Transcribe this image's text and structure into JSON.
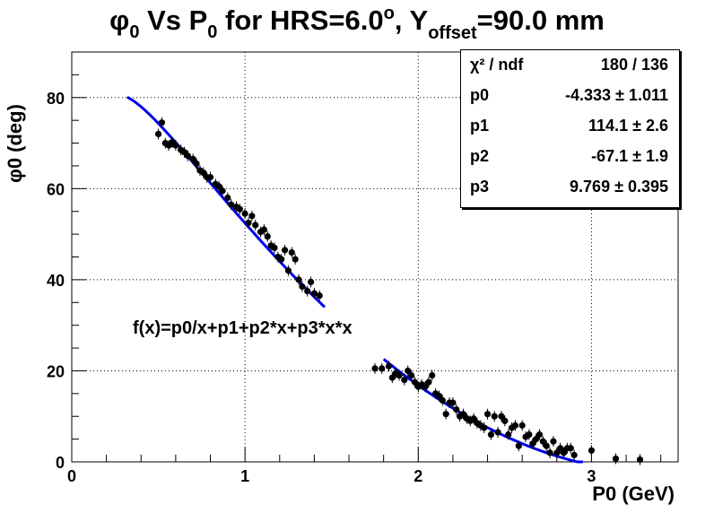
{
  "title": {
    "phi": "φ",
    "phi_sub": "0",
    "part1": " Vs P",
    "p_sub": "0",
    "part2": " for HRS=6.0",
    "deg": "o",
    "part3": ", Y",
    "y_sub": "offset",
    "part4": "=90.0 mm"
  },
  "stats_box": {
    "rows": [
      {
        "label": "χ² / ndf",
        "value": "180 / 136"
      },
      {
        "label": "p0",
        "value": "-4.333 ± 1.011"
      },
      {
        "label": "p1",
        "value": "114.1 ± 2.6"
      },
      {
        "label": "p2",
        "value": "-67.1 ± 1.9"
      },
      {
        "label": "p3",
        "value": "9.769 ± 0.395"
      }
    ]
  },
  "fit_label": "f(x)=p0/x+p1+p2*x+p3*x*x",
  "colors": {
    "fit": "#0000ee",
    "points": "#000000",
    "grid": "#000000"
  },
  "chart_data": {
    "type": "scatter",
    "xlabel": "P0 (GeV)",
    "ylabel": "φ0 (deg)",
    "xlim": [
      0,
      3.5
    ],
    "ylim": [
      0,
      90
    ],
    "xticks": [
      "0",
      "1",
      "2",
      "3"
    ],
    "yticks": [
      "0",
      "20",
      "40",
      "60",
      "80"
    ],
    "grid": true,
    "points": [
      {
        "x": 0.5,
        "y": 72.0
      },
      {
        "x": 0.52,
        "y": 74.5
      },
      {
        "x": 0.54,
        "y": 70.0
      },
      {
        "x": 0.56,
        "y": 69.5
      },
      {
        "x": 0.58,
        "y": 70.2
      },
      {
        "x": 0.6,
        "y": 69.5
      },
      {
        "x": 0.63,
        "y": 68.5
      },
      {
        "x": 0.65,
        "y": 68.0
      },
      {
        "x": 0.67,
        "y": 67.2
      },
      {
        "x": 0.7,
        "y": 66.5
      },
      {
        "x": 0.72,
        "y": 65.5
      },
      {
        "x": 0.74,
        "y": 64.0
      },
      {
        "x": 0.76,
        "y": 63.5
      },
      {
        "x": 0.78,
        "y": 62.5
      },
      {
        "x": 0.8,
        "y": 62.5
      },
      {
        "x": 0.83,
        "y": 61.0
      },
      {
        "x": 0.85,
        "y": 60.5
      },
      {
        "x": 0.87,
        "y": 59.5
      },
      {
        "x": 0.9,
        "y": 58.0
      },
      {
        "x": 0.92,
        "y": 56.5
      },
      {
        "x": 0.95,
        "y": 56.0
      },
      {
        "x": 0.97,
        "y": 55.5
      },
      {
        "x": 1.0,
        "y": 54.5
      },
      {
        "x": 1.02,
        "y": 52.5
      },
      {
        "x": 1.04,
        "y": 54.0
      },
      {
        "x": 1.06,
        "y": 52.0
      },
      {
        "x": 1.09,
        "y": 50.5
      },
      {
        "x": 1.11,
        "y": 51.0
      },
      {
        "x": 1.13,
        "y": 49.5
      },
      {
        "x": 1.15,
        "y": 47.5
      },
      {
        "x": 1.17,
        "y": 47.0
      },
      {
        "x": 1.19,
        "y": 45.0
      },
      {
        "x": 1.21,
        "y": 44.5
      },
      {
        "x": 1.23,
        "y": 46.5
      },
      {
        "x": 1.25,
        "y": 42.0
      },
      {
        "x": 1.27,
        "y": 46.0
      },
      {
        "x": 1.29,
        "y": 44.5
      },
      {
        "x": 1.31,
        "y": 40.0
      },
      {
        "x": 1.33,
        "y": 38.5
      },
      {
        "x": 1.36,
        "y": 37.5
      },
      {
        "x": 1.38,
        "y": 39.5
      },
      {
        "x": 1.4,
        "y": 37.0
      },
      {
        "x": 1.43,
        "y": 36.5
      },
      {
        "x": 1.75,
        "y": 20.5
      },
      {
        "x": 1.79,
        "y": 20.5
      },
      {
        "x": 1.83,
        "y": 21.0
      },
      {
        "x": 1.85,
        "y": 18.5
      },
      {
        "x": 1.87,
        "y": 19.5
      },
      {
        "x": 1.89,
        "y": 19.0
      },
      {
        "x": 1.92,
        "y": 18.0
      },
      {
        "x": 1.94,
        "y": 20.0
      },
      {
        "x": 1.96,
        "y": 19.0
      },
      {
        "x": 1.98,
        "y": 17.5
      },
      {
        "x": 2.0,
        "y": 16.5
      },
      {
        "x": 2.02,
        "y": 17.0
      },
      {
        "x": 2.04,
        "y": 16.5
      },
      {
        "x": 2.06,
        "y": 17.5
      },
      {
        "x": 2.08,
        "y": 19.0
      },
      {
        "x": 2.1,
        "y": 15.0
      },
      {
        "x": 2.12,
        "y": 14.5
      },
      {
        "x": 2.14,
        "y": 13.5
      },
      {
        "x": 2.16,
        "y": 10.5
      },
      {
        "x": 2.18,
        "y": 13.0
      },
      {
        "x": 2.2,
        "y": 13.0
      },
      {
        "x": 2.22,
        "y": 11.5
      },
      {
        "x": 2.24,
        "y": 10.0
      },
      {
        "x": 2.26,
        "y": 10.5
      },
      {
        "x": 2.28,
        "y": 9.5
      },
      {
        "x": 2.3,
        "y": 9.0
      },
      {
        "x": 2.32,
        "y": 9.5
      },
      {
        "x": 2.34,
        "y": 8.5
      },
      {
        "x": 2.36,
        "y": 8.0
      },
      {
        "x": 2.38,
        "y": 7.5
      },
      {
        "x": 2.4,
        "y": 10.5
      },
      {
        "x": 2.42,
        "y": 6.0
      },
      {
        "x": 2.44,
        "y": 10.0
      },
      {
        "x": 2.46,
        "y": 6.5
      },
      {
        "x": 2.48,
        "y": 10.0
      },
      {
        "x": 2.5,
        "y": 9.0
      },
      {
        "x": 2.52,
        "y": 6.0
      },
      {
        "x": 2.54,
        "y": 7.5
      },
      {
        "x": 2.56,
        "y": 8.0
      },
      {
        "x": 2.58,
        "y": 3.5
      },
      {
        "x": 2.6,
        "y": 8.0
      },
      {
        "x": 2.62,
        "y": 5.5
      },
      {
        "x": 2.64,
        "y": 6.0
      },
      {
        "x": 2.66,
        "y": 4.0
      },
      {
        "x": 2.68,
        "y": 5.0
      },
      {
        "x": 2.7,
        "y": 6.0
      },
      {
        "x": 2.72,
        "y": 4.5
      },
      {
        "x": 2.74,
        "y": 3.5
      },
      {
        "x": 2.76,
        "y": 2.0
      },
      {
        "x": 2.78,
        "y": 4.5
      },
      {
        "x": 2.8,
        "y": 2.0
      },
      {
        "x": 2.82,
        "y": 3.0
      },
      {
        "x": 2.84,
        "y": 2.0
      },
      {
        "x": 2.86,
        "y": 3.0
      },
      {
        "x": 2.88,
        "y": 3.0
      },
      {
        "x": 2.9,
        "y": 1.5
      },
      {
        "x": 3.0,
        "y": 2.5
      },
      {
        "x": 3.14,
        "y": 0.7
      },
      {
        "x": 3.28,
        "y": 0.5
      }
    ],
    "fit": {
      "name": "f(x)=p0/x+p1+p2*x+p3*x*x",
      "ranges": [
        [
          0.32,
          1.46
        ],
        [
          1.8,
          2.95
        ]
      ],
      "params": {
        "p0": -4.333,
        "p1": 114.1,
        "p2": -67.1,
        "p3": 9.769
      }
    }
  }
}
